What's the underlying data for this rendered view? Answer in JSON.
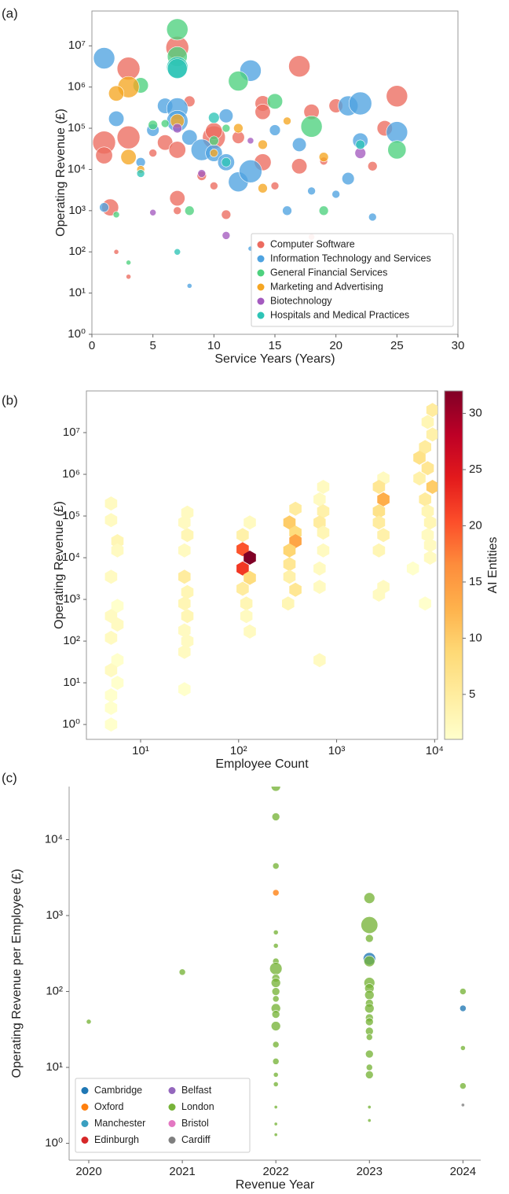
{
  "chart_data": [
    {
      "type": "scatter",
      "panel_label": "(a)",
      "x_label": "Service Years (Years)",
      "y_label": "Operating Revenue (£)",
      "xlim": [
        0,
        30
      ],
      "xticks": [
        0,
        5,
        10,
        15,
        20,
        25,
        30
      ],
      "ylim": [
        1,
        70000000
      ],
      "ylog": true,
      "yticks": [
        {
          "value": 1,
          "label": "10⁰"
        },
        {
          "value": 10,
          "label": "10¹"
        },
        {
          "value": 100,
          "label": "10²"
        },
        {
          "value": 1000,
          "label": "10³"
        },
        {
          "value": 10000,
          "label": "10⁴"
        },
        {
          "value": 100000,
          "label": "10⁵"
        },
        {
          "value": 1000000,
          "label": "10⁶"
        },
        {
          "value": 10000000,
          "label": "10⁷"
        }
      ],
      "legend": "lower right",
      "series": [
        {
          "name": "Computer Software",
          "color": "#ec6b5f",
          "x": [
            1,
            1,
            3,
            3,
            6,
            7,
            7,
            7,
            8,
            10,
            10,
            12,
            14,
            14,
            14,
            17,
            17,
            18,
            20,
            24,
            25,
            1.5,
            9,
            11,
            5,
            18,
            2,
            7,
            15,
            23,
            3,
            10,
            19
          ],
          "values": [
            45000,
            22000,
            2800000,
            60000,
            45000,
            9000000,
            2000,
            30000,
            450000,
            60000,
            85000,
            60000,
            400000,
            250000,
            15000,
            3200000,
            12000,
            250000,
            350000,
            100000,
            600000,
            1200,
            7000,
            800,
            25000,
            230,
            100,
            1000,
            4000,
            12000,
            25,
            4000,
            16000
          ],
          "sizes": [
            14,
            10,
            14,
            14,
            9,
            14,
            9,
            10,
            6,
            14,
            10,
            7,
            9,
            9,
            10,
            13,
            9,
            9,
            8,
            9,
            13,
            10,
            5,
            5,
            4,
            3,
            2,
            4,
            4,
            5,
            2,
            4,
            4
          ]
        },
        {
          "name": "Information Technology and Services",
          "color": "#4fa3e0",
          "x": [
            1,
            2,
            6,
            7,
            7,
            8,
            9,
            10,
            11,
            11,
            12,
            13,
            13,
            15,
            16,
            17,
            18,
            20,
            21,
            21,
            22,
            22,
            25,
            23,
            1,
            5,
            4,
            13,
            8
          ],
          "values": [
            5000000,
            170000,
            350000,
            300000,
            150000,
            60000,
            30000,
            25000,
            200000,
            15000,
            5000,
            2500000,
            9000,
            90000,
            1000,
            40000,
            3000,
            2500,
            350000,
            6000,
            400000,
            50000,
            80000,
            700,
            1200,
            90000,
            15000,
            120,
            15
          ],
          "sizes": [
            13,
            9,
            9,
            13,
            13,
            9,
            13,
            10,
            8,
            10,
            12,
            13,
            14,
            6,
            5,
            8,
            4,
            4,
            12,
            7,
            14,
            9,
            13,
            4,
            5,
            7,
            5,
            2,
            2
          ]
        },
        {
          "name": "General Financial Services",
          "color": "#4dd17e",
          "x": [
            4,
            7,
            7,
            12,
            15,
            18,
            25,
            5,
            10,
            6,
            8,
            19,
            3,
            2,
            11
          ],
          "values": [
            1100000,
            25000000,
            5500000,
            1400000,
            450000,
            110000,
            30000,
            120000,
            50000,
            130000,
            1000,
            1000,
            55,
            800,
            100000
          ],
          "sizes": [
            9,
            13,
            12,
            12,
            9,
            13,
            11,
            5,
            5,
            4,
            5,
            5,
            2,
            3,
            4
          ]
        },
        {
          "name": "Marketing and Advertising",
          "color": "#f5a623",
          "x": [
            3,
            2,
            7,
            3,
            14,
            12,
            16,
            19,
            14,
            4,
            10
          ],
          "values": [
            1000000,
            700000,
            150000,
            20000,
            40000,
            100000,
            150000,
            20000,
            3500,
            10000,
            25000
          ],
          "sizes": [
            13,
            9,
            8,
            9,
            5,
            5,
            4,
            5,
            5,
            4,
            4
          ]
        },
        {
          "name": "Biotechnology",
          "color": "#a45bbf",
          "x": [
            7,
            9,
            11,
            22,
            5,
            13
          ],
          "values": [
            100000,
            8000,
            250,
            25000,
            900,
            50000
          ],
          "sizes": [
            5,
            4,
            4,
            6,
            3,
            3
          ]
        },
        {
          "name": "Hospitals and Medical Practices",
          "color": "#2ec4b6",
          "x": [
            7,
            7,
            10,
            11,
            4,
            22,
            7
          ],
          "values": [
            3000000,
            2800000,
            180000,
            15000,
            8000,
            40000,
            100
          ],
          "sizes": [
            13,
            12,
            6,
            5,
            4,
            5,
            3
          ]
        }
      ]
    },
    {
      "type": "hexbin",
      "panel_label": "(b)",
      "x_label": "Employee Count",
      "y_label": "Operating Revenue (£)",
      "xlim": [
        2.8,
        10700
      ],
      "xlog": true,
      "xticks": [
        {
          "value": 10,
          "label": "10¹"
        },
        {
          "value": 100,
          "label": "10²"
        },
        {
          "value": 1000,
          "label": "10³"
        },
        {
          "value": 10000,
          "label": "10⁴"
        }
      ],
      "ylim": [
        0.44,
        100000000
      ],
      "ylog": true,
      "yticks": [
        {
          "value": 1,
          "label": "10⁰"
        },
        {
          "value": 10,
          "label": "10¹"
        },
        {
          "value": 100,
          "label": "10²"
        },
        {
          "value": 1000,
          "label": "10³"
        },
        {
          "value": 10000,
          "label": "10⁴"
        },
        {
          "value": 100000,
          "label": "10⁵"
        },
        {
          "value": 1000000,
          "label": "10⁶"
        },
        {
          "value": 10000000,
          "label": "10⁷"
        }
      ],
      "colormap": "YlOrRd",
      "clim": [
        1,
        32
      ],
      "cticks": [
        5,
        10,
        15,
        20,
        25,
        30
      ],
      "colorbar_label": "AI Entities",
      "x": [
        5,
        5,
        5.8,
        5.8,
        5,
        5.8,
        5,
        5.8,
        5,
        5.8,
        5,
        5.8,
        5,
        5,
        5,
        30,
        28,
        30,
        28,
        28,
        30,
        28,
        30,
        28,
        30,
        28,
        28,
        130,
        110,
        110,
        130,
        110,
        130,
        110,
        120,
        120,
        130,
        380,
        330,
        380,
        380,
        330,
        330,
        330,
        380,
        320,
        730,
        670,
        730,
        670,
        730,
        730,
        670,
        670,
        670,
        3000,
        2700,
        3000,
        2700,
        2700,
        3000,
        2700,
        3000,
        2700,
        9500,
        8500,
        9500,
        8000,
        7000,
        8500,
        7000,
        9500,
        8000,
        8500,
        9000,
        8500,
        9000,
        9000,
        6000,
        8000
      ],
      "y": [
        200000,
        80000,
        25000,
        15000,
        3500,
        700,
        400,
        250,
        120,
        35,
        20,
        10,
        5,
        2.5,
        1,
        120000,
        70000,
        35000,
        15000,
        3500,
        1500,
        800,
        400,
        180,
        100,
        55,
        7,
        70000,
        35000,
        16000,
        10000,
        5500,
        3300,
        1800,
        800,
        400,
        170,
        150000,
        70000,
        40000,
        25000,
        15000,
        7000,
        3500,
        1700,
        800,
        500000,
        250000,
        130000,
        70000,
        40000,
        15000,
        5500,
        2000,
        35,
        800000,
        500000,
        250000,
        130000,
        70000,
        35000,
        15000,
        2000,
        1300,
        35000000,
        18000000,
        9000000,
        4500000,
        2500000,
        1400000,
        800000,
        500000,
        250000,
        130000,
        70000,
        35000,
        20000,
        10000,
        5500,
        800
      ],
      "values": [
        2,
        2,
        3,
        2,
        2,
        1,
        2,
        2,
        2,
        1,
        2,
        1,
        1,
        1,
        1,
        2,
        2,
        3,
        2,
        5,
        3,
        3,
        3,
        2,
        2,
        2,
        1,
        2,
        4,
        20,
        32,
        22,
        8,
        5,
        3,
        2,
        2,
        5,
        10,
        8,
        14,
        9,
        6,
        4,
        6,
        3,
        2,
        2,
        4,
        5,
        3,
        2,
        2,
        2,
        2,
        2,
        6,
        13,
        7,
        5,
        4,
        3,
        2,
        2,
        5,
        3,
        4,
        5,
        7,
        6,
        4,
        10,
        5,
        3,
        3,
        2,
        2,
        2,
        1,
        1
      ]
    },
    {
      "type": "scatter",
      "panel_label": "(c)",
      "x_label": "Revenue Year",
      "y_label": "Operating Revenue per Employee (£)",
      "xlim": [
        2019.79,
        2024.19
      ],
      "xticks": [
        2020,
        2021,
        2022,
        2023,
        2024
      ],
      "ylim": [
        0.6,
        50000
      ],
      "ylog": true,
      "yticks": [
        {
          "value": 1,
          "label": "10⁰"
        },
        {
          "value": 10,
          "label": "10¹"
        },
        {
          "value": 100,
          "label": "10²"
        },
        {
          "value": 1000,
          "label": "10³"
        },
        {
          "value": 10000,
          "label": "10⁴"
        }
      ],
      "legend": "lower left",
      "legend_columns": 2,
      "series": [
        {
          "name": "Cambridge",
          "color": "#1f77b4",
          "x": [
            2023,
            2024
          ],
          "values": [
            270,
            60
          ],
          "sizes": [
            7,
            3
          ]
        },
        {
          "name": "Oxford",
          "color": "#ff7f0e",
          "x": [
            2022
          ],
          "values": [
            2000
          ],
          "sizes": [
            3
          ]
        },
        {
          "name": "Manchester",
          "color": "#3a9fc0",
          "x": [],
          "values": [],
          "sizes": []
        },
        {
          "name": "Edinburgh",
          "color": "#d62728",
          "x": [],
          "values": [],
          "sizes": []
        },
        {
          "name": "Belfast",
          "color": "#9467bd",
          "x": [],
          "values": [],
          "sizes": []
        },
        {
          "name": "London",
          "color": "#77b339",
          "x": [
            2020,
            2021,
            2022,
            2022,
            2022,
            2022,
            2022,
            2022,
            2022,
            2022,
            2022,
            2022,
            2022,
            2022,
            2022,
            2022,
            2022,
            2022,
            2022,
            2022,
            2022,
            2022,
            2022,
            2023,
            2023,
            2023,
            2023,
            2023,
            2023,
            2023,
            2023,
            2023,
            2023,
            2023,
            2023,
            2023,
            2023,
            2023,
            2023,
            2023,
            2023,
            2024,
            2024,
            2024
          ],
          "values": [
            40,
            180,
            50000,
            20000,
            4500,
            600,
            400,
            250,
            200,
            150,
            130,
            100,
            80,
            60,
            50,
            35,
            20,
            12,
            8,
            6,
            3,
            1.8,
            1.3,
            1700,
            750,
            500,
            250,
            130,
            110,
            90,
            70,
            60,
            45,
            40,
            30,
            25,
            15,
            10,
            8,
            3,
            2,
            100,
            18,
            5.7
          ],
          "sizes": [
            2,
            3,
            5,
            4,
            3,
            2,
            2,
            3,
            7,
            4,
            5,
            4,
            3,
            5,
            4,
            5,
            3,
            3,
            2,
            2,
            1,
            1,
            1,
            6,
            10,
            4,
            6,
            6,
            5,
            5,
            4,
            5,
            4,
            4,
            4,
            3,
            4,
            3,
            4,
            1,
            1,
            3,
            2,
            3
          ]
        },
        {
          "name": "Bristol",
          "color": "#e377c2",
          "x": [],
          "values": [],
          "sizes": []
        },
        {
          "name": "Cardiff",
          "color": "#7f7f7f",
          "x": [
            2024
          ],
          "values": [
            3.2
          ],
          "sizes": [
            1
          ]
        }
      ]
    }
  ]
}
